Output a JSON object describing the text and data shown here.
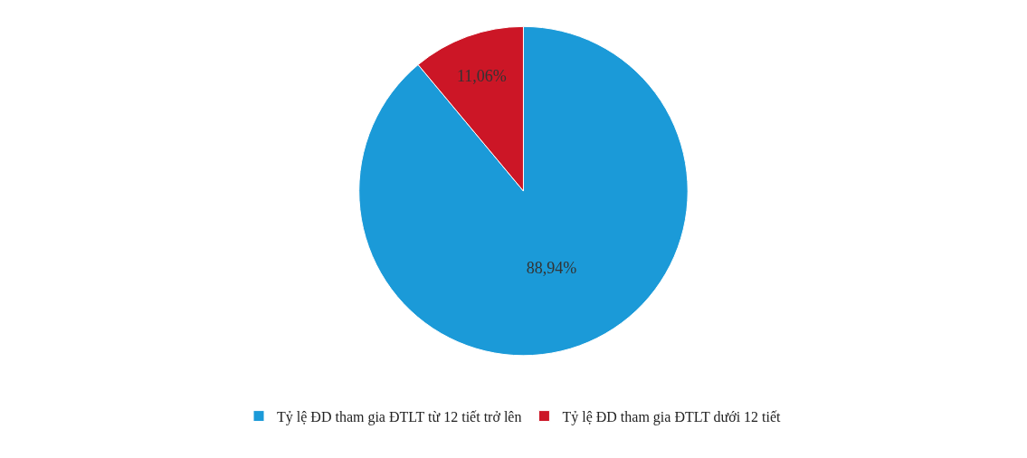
{
  "chart_data": {
    "type": "pie",
    "categories": [
      "Tỷ lệ ĐD tham gia ĐTLT từ 12 tiết trở lên",
      "Tỷ lệ ĐD tham gia ĐTLT dưới 12 tiết"
    ],
    "values": [
      88.94,
      11.06
    ],
    "colors": [
      "#1b9ad8",
      "#cc1626"
    ],
    "value_labels": [
      "88,94%",
      "11,06%"
    ],
    "legend": "bottom"
  }
}
